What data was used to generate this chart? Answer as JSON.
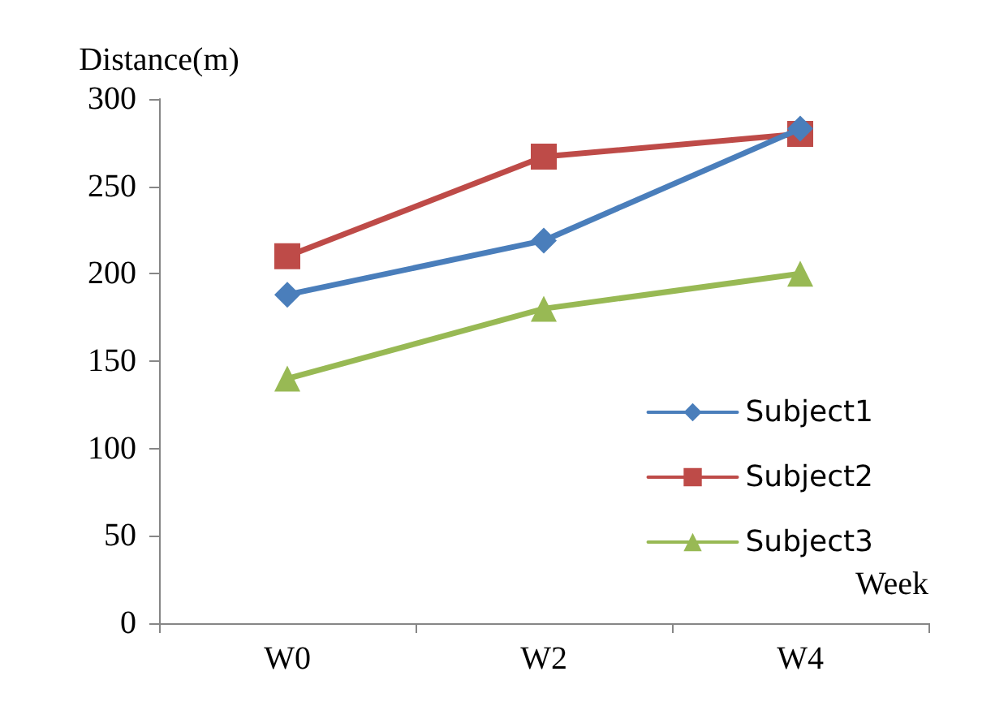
{
  "chart_data": {
    "type": "line",
    "xlabel": "Week",
    "ylabel": "Distance(m)",
    "categories": [
      "W0",
      "W2",
      "W4"
    ],
    "series": [
      {
        "name": "Subject1",
        "color": "#4a7ebb",
        "marker": "diamond",
        "values": [
          188,
          219,
          283
        ]
      },
      {
        "name": "Subject2",
        "color": "#be4b48",
        "marker": "square",
        "values": [
          210,
          267,
          280
        ]
      },
      {
        "name": "Subject3",
        "color": "#98b954",
        "marker": "triangle",
        "values": [
          140,
          180,
          200
        ]
      }
    ],
    "ylim": [
      0,
      300
    ],
    "yticks": [
      0,
      50,
      100,
      150,
      200,
      250,
      300
    ],
    "grid": false,
    "legend": "right"
  }
}
